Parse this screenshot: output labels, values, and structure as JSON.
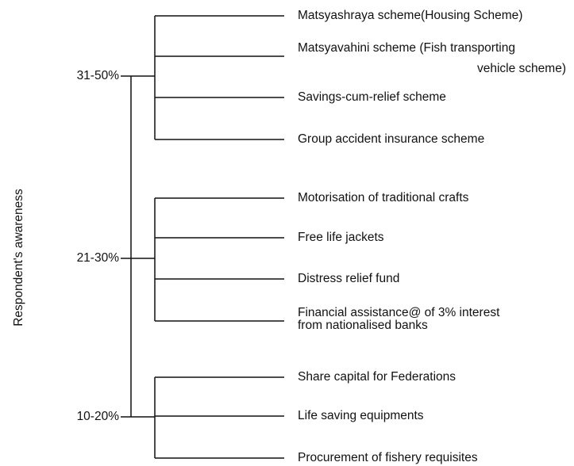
{
  "axis_label": "Respondent's awareness",
  "groups": [
    {
      "label": "31-50%",
      "items": [
        {
          "lines": [
            "Matsyashraya scheme(Housing Scheme)"
          ]
        },
        {
          "lines": [
            "Matsyavahini scheme (Fish transporting",
            "vehicle scheme)"
          ]
        },
        {
          "lines": [
            "Savings-cum-relief scheme"
          ]
        },
        {
          "lines": [
            "Group accident insurance scheme"
          ]
        }
      ]
    },
    {
      "label": "21-30%",
      "items": [
        {
          "lines": [
            "Motorisation of traditional crafts"
          ]
        },
        {
          "lines": [
            "Free life jackets"
          ]
        },
        {
          "lines": [
            "Distress relief fund"
          ]
        },
        {
          "lines": [
            "Financial assistance@ of 3% interest",
            "from nationalised banks"
          ]
        }
      ]
    },
    {
      "label": "10-20%",
      "items": [
        {
          "lines": [
            "Share capital for Federations"
          ]
        },
        {
          "lines": [
            "Life saving equipments"
          ]
        },
        {
          "lines": [
            "Procurement of fishery requisites"
          ]
        }
      ]
    }
  ]
}
